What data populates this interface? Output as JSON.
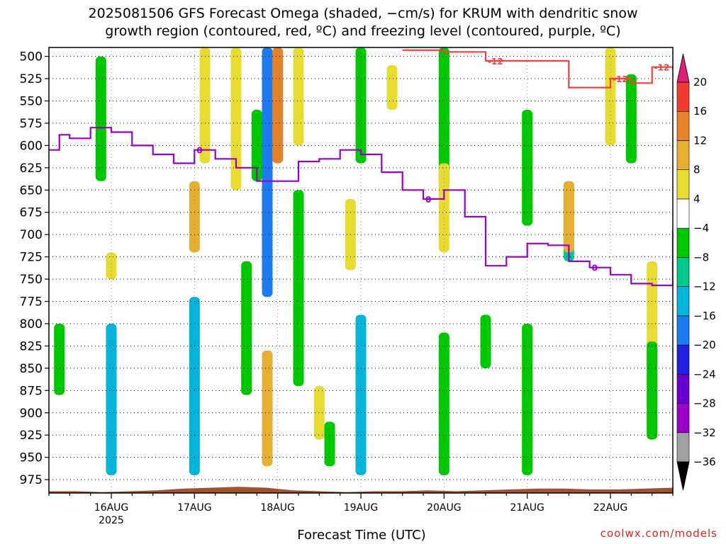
{
  "title": {
    "line1": "2025081506 GFS Forecast Omega (shaded, −cm/s) for KRUM with dendritic snow",
    "line2": "growth region (contoured, red, ºC) and freezing level (contoured, purple, ºC)"
  },
  "xlabel": "Forecast Time (UTC)",
  "credit": "coolwx.com/models",
  "chart_data": {
    "type": "heatmap",
    "y_axis": {
      "label": "",
      "ticks": [
        500,
        525,
        550,
        575,
        600,
        625,
        650,
        675,
        700,
        725,
        750,
        775,
        800,
        825,
        850,
        875,
        900,
        925,
        950,
        975
      ],
      "ylim": [
        490,
        990
      ],
      "direction": "increasing-down"
    },
    "x_axis": {
      "ticks": [
        "16AUG",
        "17AUG",
        "18AUG",
        "19AUG",
        "20AUG",
        "21AUG",
        "22AUG"
      ],
      "sub_label": "2025",
      "start": "15AUG 06Z",
      "end": "22AUG 18Z"
    },
    "grid": true,
    "colorbar": {
      "levels": [
        -36,
        -32,
        -28,
        -24,
        -20,
        -16,
        -12,
        -8,
        -4,
        4,
        8,
        12,
        16,
        20
      ],
      "colors": [
        "#a0a0a0",
        "#9a00c8",
        "#6a00d0",
        "#2020e0",
        "#1a7cf0",
        "#00b4dc",
        "#00c88c",
        "#00c800",
        "#ffffff",
        "#e8dc32",
        "#e6af32",
        "#e68228",
        "#f03c32",
        "#e01e78"
      ],
      "position": "right"
    },
    "freezing_level": {
      "color": "#9900cc",
      "label": "0",
      "points": [
        [
          "15AUG 06Z",
          605
        ],
        [
          "15AUG 09Z",
          588
        ],
        [
          "15AUG 12Z",
          592
        ],
        [
          "15AUG 18Z",
          580
        ],
        [
          "16AUG 00Z",
          585
        ],
        [
          "16AUG 06Z",
          600
        ],
        [
          "16AUG 12Z",
          610
        ],
        [
          "16AUG 18Z",
          620
        ],
        [
          "17AUG 00Z",
          605
        ],
        [
          "17AUG 06Z",
          615
        ],
        [
          "17AUG 12Z",
          625
        ],
        [
          "17AUG 18Z",
          640
        ],
        [
          "18AUG 00Z",
          640
        ],
        [
          "18AUG 06Z",
          618
        ],
        [
          "18AUG 12Z",
          615
        ],
        [
          "18AUG 18Z",
          605
        ],
        [
          "19AUG 00Z",
          610
        ],
        [
          "19AUG 06Z",
          630
        ],
        [
          "19AUG 12Z",
          650
        ],
        [
          "19AUG 18Z",
          660
        ],
        [
          "20AUG 00Z",
          650
        ],
        [
          "20AUG 06Z",
          680
        ],
        [
          "20AUG 12Z",
          735
        ],
        [
          "20AUG 18Z",
          725
        ],
        [
          "21AUG 00Z",
          710
        ],
        [
          "21AUG 06Z",
          712
        ],
        [
          "21AUG 12Z",
          730
        ],
        [
          "21AUG 18Z",
          737
        ],
        [
          "22AUG 00Z",
          745
        ],
        [
          "22AUG 06Z",
          755
        ],
        [
          "22AUG 12Z",
          757
        ],
        [
          "22AUG 18Z",
          695
        ]
      ]
    },
    "dendritic_isotherm": {
      "color": "#f04040",
      "label": "-12",
      "points": [
        [
          "19AUG 12Z",
          493
        ],
        [
          "20AUG 00Z",
          495
        ],
        [
          "20AUG 12Z",
          505
        ],
        [
          "21AUG 00Z",
          505
        ],
        [
          "21AUG 12Z",
          535
        ],
        [
          "21AUG 18Z",
          535
        ],
        [
          "22AUG 00Z",
          525
        ],
        [
          "22AUG 06Z",
          530
        ],
        [
          "22AUG 12Z",
          512
        ],
        [
          "22AUG 18Z",
          515
        ]
      ]
    },
    "omega_cells": [
      {
        "t": "15AUG 09Z",
        "p1": 800,
        "p2": 880,
        "value": -8
      },
      {
        "t": "15AUG 21Z",
        "p1": 500,
        "p2": 640,
        "value": -6
      },
      {
        "t": "16AUG 00Z",
        "p1": 800,
        "p2": 970,
        "value": -14
      },
      {
        "t": "16AUG 00Z",
        "p1": 720,
        "p2": 750,
        "value": 5
      },
      {
        "t": "17AUG 00Z",
        "p1": 770,
        "p2": 970,
        "value": -16
      },
      {
        "t": "17AUG 00Z",
        "p1": 640,
        "p2": 720,
        "value": 9
      },
      {
        "t": "17AUG 03Z",
        "p1": 490,
        "p2": 620,
        "value": 5
      },
      {
        "t": "17AUG 12Z",
        "p1": 490,
        "p2": 650,
        "value": 6
      },
      {
        "t": "17AUG 15Z",
        "p1": 730,
        "p2": 880,
        "value": -7
      },
      {
        "t": "17AUG 18Z",
        "p1": 560,
        "p2": 640,
        "value": -7
      },
      {
        "t": "17AUG 21Z",
        "p1": 490,
        "p2": 770,
        "value": -20
      },
      {
        "t": "17AUG 21Z",
        "p1": 830,
        "p2": 960,
        "value": 10
      },
      {
        "t": "18AUG 00Z",
        "p1": 490,
        "p2": 620,
        "value": 12
      },
      {
        "t": "18AUG 06Z",
        "p1": 650,
        "p2": 870,
        "value": -8
      },
      {
        "t": "18AUG 06Z",
        "p1": 490,
        "p2": 600,
        "value": 6
      },
      {
        "t": "18AUG 12Z",
        "p1": 870,
        "p2": 930,
        "value": 5
      },
      {
        "t": "18AUG 15Z",
        "p1": 910,
        "p2": 960,
        "value": -7
      },
      {
        "t": "18AUG 21Z",
        "p1": 660,
        "p2": 740,
        "value": 5
      },
      {
        "t": "19AUG 00Z",
        "p1": 790,
        "p2": 970,
        "value": -14
      },
      {
        "t": "19AUG 00Z",
        "p1": 490,
        "p2": 620,
        "value": -7
      },
      {
        "t": "19AUG 09Z",
        "p1": 510,
        "p2": 560,
        "value": 5
      },
      {
        "t": "20AUG 00Z",
        "p1": 490,
        "p2": 650,
        "value": -8
      },
      {
        "t": "20AUG 00Z",
        "p1": 810,
        "p2": 970,
        "value": -7
      },
      {
        "t": "20AUG 00Z",
        "p1": 620,
        "p2": 720,
        "value": 5
      },
      {
        "t": "20AUG 12Z",
        "p1": 790,
        "p2": 850,
        "value": -7
      },
      {
        "t": "21AUG 00Z",
        "p1": 560,
        "p2": 690,
        "value": -7
      },
      {
        "t": "21AUG 00Z",
        "p1": 800,
        "p2": 970,
        "value": -7
      },
      {
        "t": "21AUG 12Z",
        "p1": 640,
        "p2": 730,
        "value": -11
      },
      {
        "t": "21AUG 12Z",
        "p1": 640,
        "p2": 720,
        "value": 9
      },
      {
        "t": "22AUG 00Z",
        "p1": 490,
        "p2": 600,
        "value": 5
      },
      {
        "t": "22AUG 06Z",
        "p1": 520,
        "p2": 620,
        "value": -7
      },
      {
        "t": "22AUG 12Z",
        "p1": 730,
        "p2": 930,
        "value": 5
      },
      {
        "t": "22AUG 12Z",
        "p1": 820,
        "p2": 930,
        "value": -7
      }
    ]
  }
}
